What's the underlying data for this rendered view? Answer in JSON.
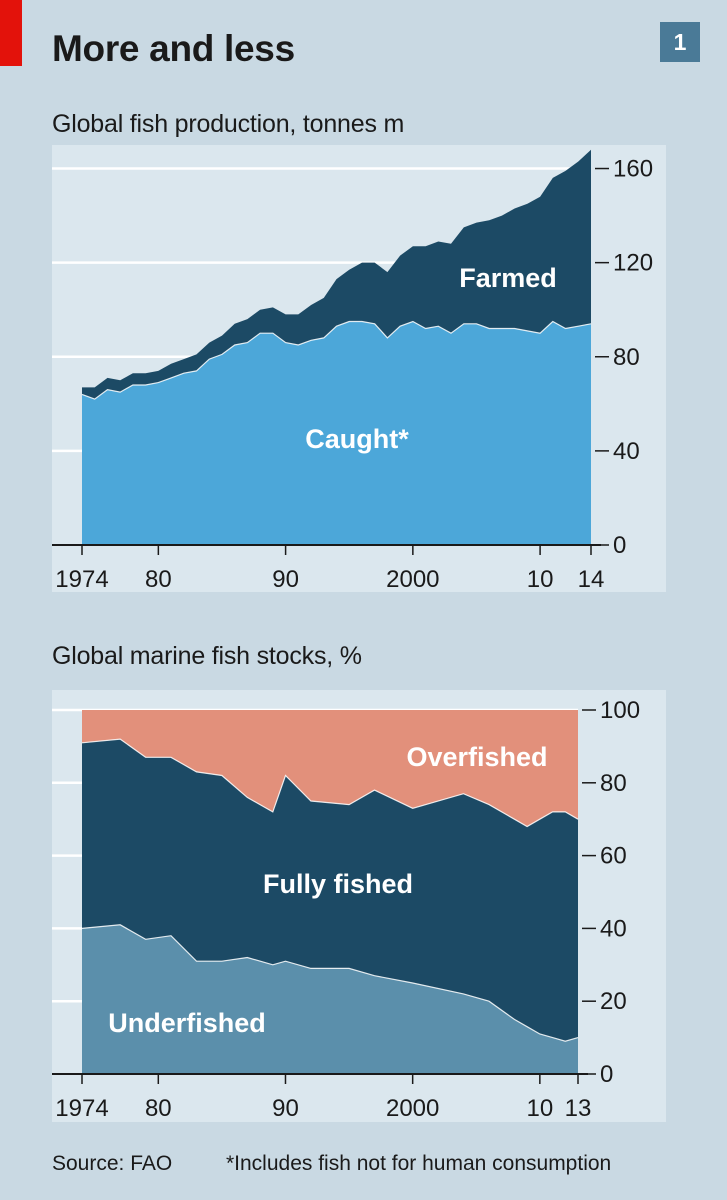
{
  "title": "More and less",
  "badge": "1",
  "source": "Source: FAO",
  "footnote": "*Includes fish not for human consumption",
  "colors": {
    "background": "#c9d9e3",
    "plot_background": "#dbe7ee",
    "caught": "#4ca7d9",
    "farmed": "#1c4a65",
    "overfished": "#e2907b",
    "fully_fished": "#1c4a65",
    "underfished": "#5b8fab",
    "accent_red": "#e3120b"
  },
  "chart_data": [
    {
      "type": "area",
      "stacked": true,
      "title": "Global fish production, tonnes m",
      "x": [
        1974,
        1975,
        1976,
        1977,
        1978,
        1979,
        1980,
        1981,
        1982,
        1983,
        1984,
        1985,
        1986,
        1987,
        1988,
        1989,
        1990,
        1991,
        1992,
        1993,
        1994,
        1995,
        1996,
        1997,
        1998,
        1999,
        2000,
        2001,
        2002,
        2003,
        2004,
        2005,
        2006,
        2007,
        2008,
        2009,
        2010,
        2011,
        2012,
        2013,
        2014
      ],
      "series": [
        {
          "name": "Caught*",
          "values": [
            64,
            62,
            66,
            65,
            68,
            68,
            69,
            71,
            73,
            74,
            79,
            81,
            85,
            86,
            90,
            90,
            86,
            85,
            87,
            88,
            93,
            95,
            95,
            94,
            88,
            93,
            95,
            92,
            93,
            90,
            94,
            94,
            92,
            92,
            92,
            91,
            90,
            95,
            92,
            93,
            94
          ]
        },
        {
          "name": "Farmed",
          "values": [
            3,
            5,
            5,
            5,
            5,
            5,
            5,
            6,
            6,
            7,
            7,
            8,
            9,
            10,
            10,
            11,
            12,
            13,
            15,
            17,
            20,
            22,
            25,
            26,
            28,
            30,
            32,
            35,
            36,
            38,
            41,
            43,
            46,
            48,
            51,
            54,
            58,
            61,
            67,
            70,
            74
          ]
        }
      ],
      "xticks": [
        1974,
        1980,
        1990,
        2000,
        2010,
        2014
      ],
      "xtick_labels": [
        "1974",
        "80",
        "90",
        "2000",
        "10",
        "14"
      ],
      "yticks": [
        0,
        40,
        80,
        120,
        160
      ],
      "ylim": [
        0,
        170
      ],
      "labels": {
        "Caught*": "Caught*",
        "Farmed": "Farmed"
      }
    },
    {
      "type": "area",
      "stacked": true,
      "title": "Global marine fish stocks, %",
      "x": [
        1974,
        1977,
        1979,
        1981,
        1983,
        1985,
        1987,
        1989,
        1990,
        1992,
        1995,
        1997,
        2000,
        2004,
        2006,
        2008,
        2009,
        2010,
        2011,
        2012,
        2013
      ],
      "series": [
        {
          "name": "Underfished",
          "values": [
            40,
            41,
            37,
            38,
            31,
            31,
            32,
            30,
            31,
            29,
            29,
            27,
            25,
            22,
            20,
            15,
            13,
            11,
            10,
            9,
            10
          ]
        },
        {
          "name": "Fully fished",
          "values": [
            51,
            51,
            50,
            49,
            52,
            51,
            44,
            42,
            51,
            46,
            45,
            51,
            48,
            55,
            54,
            55,
            55,
            59,
            62,
            63,
            60
          ]
        },
        {
          "name": "Overfished",
          "values": [
            9,
            8,
            13,
            13,
            17,
            18,
            24,
            28,
            18,
            25,
            26,
            22,
            27,
            23,
            26,
            30,
            32,
            30,
            28,
            28,
            30
          ]
        }
      ],
      "xticks": [
        1974,
        1980,
        1990,
        2000,
        2010,
        2013
      ],
      "xtick_labels": [
        "1974",
        "80",
        "90",
        "2000",
        "10",
        "13"
      ],
      "yticks": [
        0,
        20,
        40,
        60,
        80,
        100
      ],
      "ylim": [
        0,
        100
      ],
      "labels": {
        "Underfished": "Underfished",
        "Fully fished": "Fully fished",
        "Overfished": "Overfished"
      }
    }
  ]
}
